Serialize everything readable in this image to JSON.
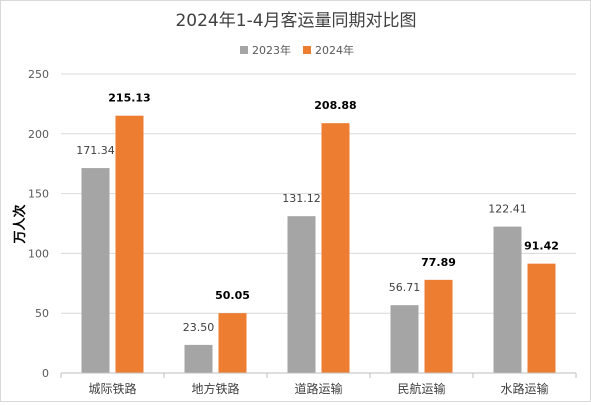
{
  "chart_data": {
    "type": "bar",
    "title": "2024年1-4月客运量同期对比图",
    "ylabel": "万人次",
    "xlabel": "",
    "categories": [
      "城际铁路",
      "地方铁路",
      "道路运输",
      "民航运输",
      "水路运输"
    ],
    "series": [
      {
        "name": "2023年",
        "color": "#a5a5a5",
        "values": [
          171.34,
          23.5,
          131.12,
          56.71,
          122.41
        ],
        "labels": [
          "171.34",
          "23.50",
          "131.12",
          "56.71",
          "122.41"
        ]
      },
      {
        "name": "2024年",
        "color": "#ed7d31",
        "values": [
          215.13,
          50.05,
          208.88,
          77.89,
          91.42
        ],
        "labels": [
          "215.13",
          "50.05",
          "208.88",
          "77.89",
          "91.42"
        ]
      }
    ],
    "ylim": [
      0,
      250
    ],
    "yticks": [
      0,
      50,
      100,
      150,
      200,
      250
    ],
    "grid": true,
    "legend_position": "top"
  }
}
